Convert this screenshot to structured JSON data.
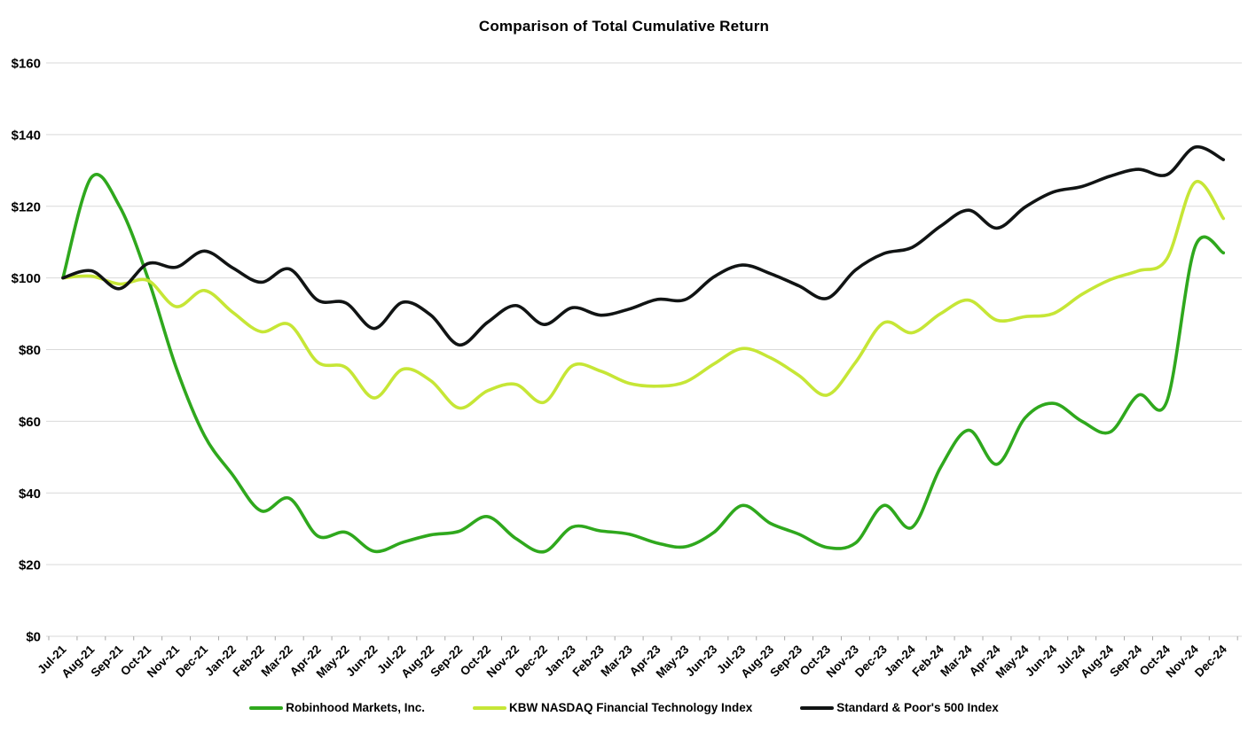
{
  "page": {
    "background_color": "#FFFFFF",
    "text_color": "#000000"
  },
  "chart_data": {
    "type": "line",
    "title": "Comparison of Total Cumulative Return",
    "grid": "horizontal",
    "legend_position": "bottom",
    "x_labels": [
      "Jul-21",
      "Aug-21",
      "Sep-21",
      "Oct-21",
      "Nov-21",
      "Dec-21",
      "Jan-22",
      "Feb-22",
      "Mar-22",
      "Apr-22",
      "May-22",
      "Jun-22",
      "Jul-22",
      "Aug-22",
      "Sep-22",
      "Oct-22",
      "Nov-22",
      "Dec-22",
      "Jan-23",
      "Feb-23",
      "Mar-23",
      "Apr-23",
      "May-23",
      "Jun-23",
      "Jul-23",
      "Aug-23",
      "Sep-23",
      "Oct-23",
      "Nov-23",
      "Dec-23",
      "Jan-24",
      "Feb-24",
      "Mar-24",
      "Apr-24",
      "May-24",
      "Jun-24",
      "Jul-24",
      "Aug-24",
      "Sep-24",
      "Oct-24",
      "Nov-24",
      "Dec-24"
    ],
    "y_axis": {
      "min": 0,
      "max": 160,
      "step": 20,
      "tick_prefix": "$",
      "tick_labels": [
        "$0",
        "$20",
        "$40",
        "$60",
        "$80",
        "$100",
        "$120",
        "$140",
        "$160"
      ]
    },
    "series": [
      {
        "name": "Robinhood Markets, Inc.",
        "slug": "robinhood",
        "color": "#2FA81D",
        "values": [
          100,
          128,
          120,
          100,
          75,
          56,
          45,
          35,
          38.5,
          28,
          29,
          23.7,
          26.2,
          28.3,
          29.3,
          33.4,
          27.3,
          23.6,
          30.5,
          29.4,
          28.5,
          26,
          25,
          29,
          36.5,
          31.5,
          28.5,
          24.8,
          26,
          36.5,
          30.4,
          47,
          57.5,
          48,
          61,
          65,
          60,
          57,
          67.3,
          65.5,
          108.7,
          107
        ]
      },
      {
        "name": "KBW NASDAQ Financial Technology Index",
        "slug": "kbw-nasdaq-fintech-index",
        "color": "#C6E636",
        "values": [
          100,
          100.5,
          98.3,
          99.3,
          92,
          96.5,
          90.4,
          85,
          87,
          76.5,
          75,
          66.5,
          74.5,
          71.3,
          63.7,
          68.5,
          70.3,
          65.3,
          75.5,
          74,
          70.6,
          69.8,
          71,
          76,
          80.3,
          77.7,
          72.8,
          67.3,
          76.4,
          87.5,
          84.7,
          90,
          93.8,
          88.2,
          89.2,
          90.1,
          95.4,
          99.5,
          102,
          105.3,
          126.7,
          116.6
        ]
      },
      {
        "name": "Standard & Poor's 500 Index",
        "slug": "sp-500-index",
        "color": "#111414",
        "values": [
          100,
          102,
          97,
          104,
          103,
          107.5,
          102.8,
          98.8,
          102.5,
          93.8,
          93,
          85.9,
          93.2,
          89.6,
          81.3,
          87.6,
          92.3,
          87,
          91.7,
          89.6,
          91.3,
          94,
          94,
          100.3,
          103.6,
          101.2,
          97.8,
          94.3,
          102.2,
          106.8,
          108.5,
          114.4,
          118.9,
          113.9,
          119.8,
          124,
          125.5,
          128.4,
          130.3,
          128.8,
          136.5,
          133
        ]
      }
    ],
    "styling": {
      "gridline_color": "#D9D9D9",
      "tick_mark_color": "#A6A6A6",
      "line_width": 3.6
    }
  }
}
